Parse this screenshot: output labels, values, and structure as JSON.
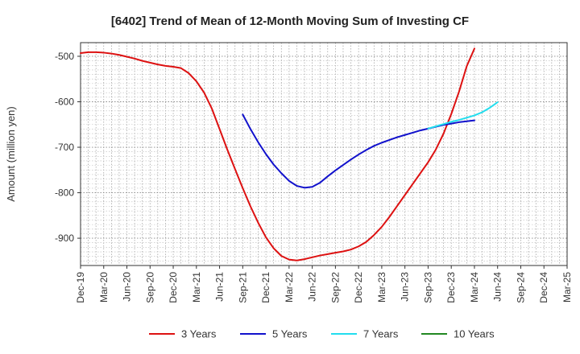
{
  "chart_data": {
    "type": "line",
    "title": "[6402]  Trend of Mean of 12-Month Moving Sum of Investing CF",
    "xlabel": "",
    "ylabel": "Amount (million yen)",
    "x_tick_labels": [
      "Dec-19",
      "Mar-20",
      "Jun-20",
      "Sep-20",
      "Dec-20",
      "Mar-21",
      "Jun-21",
      "Sep-21",
      "Dec-21",
      "Mar-22",
      "Jun-22",
      "Sep-22",
      "Dec-22",
      "Mar-23",
      "Jun-23",
      "Sep-23",
      "Dec-23",
      "Mar-24",
      "Jun-24",
      "Sep-24",
      "Dec-24",
      "Mar-25"
    ],
    "y_ticks": [
      -500,
      -600,
      -700,
      -800,
      -900
    ],
    "y_tick_labels": [
      "-500",
      "-600",
      "-700",
      "-800",
      "-900"
    ],
    "ylim": [
      -960,
      -470
    ],
    "x_count": 64,
    "grid": true,
    "legend_position": "bottom",
    "series": [
      {
        "name": "3 Years",
        "color": "#dd1111",
        "start_index": 0,
        "values": [
          -493,
          -491,
          -491,
          -492,
          -494,
          -497,
          -501,
          -505,
          -510,
          -514,
          -518,
          -521,
          -523,
          -526,
          -537,
          -555,
          -580,
          -615,
          -660,
          -705,
          -748,
          -790,
          -830,
          -866,
          -898,
          -922,
          -939,
          -947,
          -949,
          -946,
          -942,
          -938,
          -935,
          -932,
          -929,
          -925,
          -918,
          -908,
          -893,
          -875,
          -853,
          -829,
          -805,
          -781,
          -757,
          -733,
          -705,
          -670,
          -627,
          -578,
          -522,
          -483
        ]
      },
      {
        "name": "5 Years",
        "color": "#1111cc",
        "start_index": 21,
        "values": [
          -628,
          -660,
          -689,
          -715,
          -738,
          -757,
          -774,
          -785,
          -789,
          -787,
          -778,
          -764,
          -751,
          -739,
          -727,
          -716,
          -706,
          -697,
          -690,
          -684,
          -678,
          -673,
          -668,
          -663,
          -659,
          -655,
          -651,
          -648,
          -645,
          -643,
          -641
        ]
      },
      {
        "name": "7 Years",
        "color": "#22ddee",
        "start_index": 45,
        "values": [
          -659,
          -654,
          -649,
          -644,
          -640,
          -635,
          -630,
          -623,
          -613,
          -601
        ]
      },
      {
        "name": "10 Years",
        "color": "#228822",
        "start_index": 0,
        "values": []
      }
    ]
  }
}
